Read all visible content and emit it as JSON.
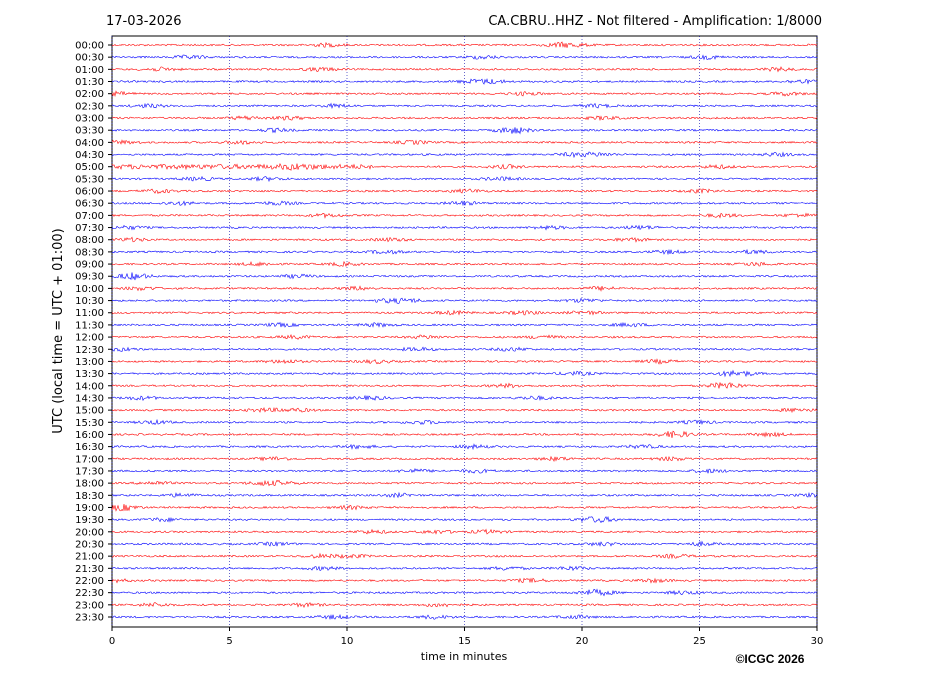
{
  "chart_data": {
    "type": "helicorder",
    "date": "17-03-2026",
    "title": "CA.CBRU..HHZ - Not filtered - Amplification: 1/8000",
    "y_label": "UTC (local time = UTC + 01:00)",
    "x_label": "time in minutes",
    "credit": "©ICGC 2026",
    "categories": [
      "00:00",
      "00:30",
      "01:00",
      "01:30",
      "02:00",
      "02:30",
      "03:00",
      "03:30",
      "04:00",
      "04:30",
      "05:00",
      "05:30",
      "06:00",
      "06:30",
      "07:00",
      "07:30",
      "08:00",
      "08:30",
      "09:00",
      "09:30",
      "10:00",
      "10:30",
      "11:00",
      "11:30",
      "12:00",
      "12:30",
      "13:00",
      "13:30",
      "14:00",
      "14:30",
      "15:00",
      "15:30",
      "16:00",
      "16:30",
      "17:00",
      "17:30",
      "18:00",
      "18:30",
      "19:00",
      "19:30",
      "20:00",
      "20:30",
      "21:00",
      "21:30",
      "22:00",
      "22:30",
      "23:00",
      "23:30"
    ],
    "trace_colors": [
      "#ff0000",
      "#0000ff"
    ],
    "xlim": [
      0,
      30
    ],
    "xticks": [
      0,
      5,
      10,
      15,
      20,
      25,
      30
    ],
    "grid": true
  }
}
